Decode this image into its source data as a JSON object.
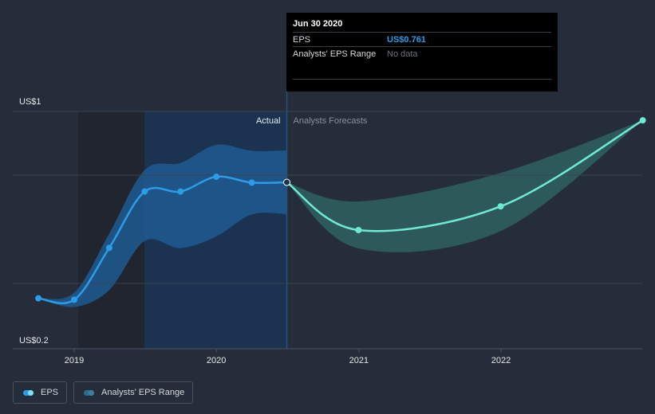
{
  "tooltip": {
    "title": "Jun 30 2020",
    "eps_label": "EPS",
    "eps_value": "US$0.761",
    "range_label": "Analysts' EPS Range",
    "range_value": "No data"
  },
  "legend": {
    "eps_label": "EPS",
    "range_label": "Analysts' EPS Range"
  },
  "colors": {
    "background": "#262d3a",
    "eps_actual": "#2d9ce8",
    "eps_forecast": "#6fe8d4",
    "range_actual": "#1f5a91",
    "range_forecast": "#2f5e5f"
  },
  "chart_data": {
    "type": "line",
    "y_axis": {
      "min": 0.2,
      "max": 1.0,
      "labels": [
        "US$1",
        "US$0.2"
      ]
    },
    "x_axis": {
      "ticks": [
        "2019",
        "2020",
        "2021",
        "2022"
      ]
    },
    "regions": {
      "actual_label": "Actual",
      "forecast_label": "Analysts Forecasts"
    },
    "series": [
      {
        "name": "EPS",
        "kind": "actual",
        "points": [
          {
            "x": "2018-10-01",
            "y": 0.37
          },
          {
            "x": "2019-01-01",
            "y": 0.365
          },
          {
            "x": "2019-04-01",
            "y": 0.54
          },
          {
            "x": "2019-07-01",
            "y": 0.73
          },
          {
            "x": "2019-10-01",
            "y": 0.73
          },
          {
            "x": "2020-01-01",
            "y": 0.78
          },
          {
            "x": "2020-04-01",
            "y": 0.76
          },
          {
            "x": "2020-06-30",
            "y": 0.761
          }
        ]
      },
      {
        "name": "EPS",
        "kind": "forecast",
        "points": [
          {
            "x": "2020-06-30",
            "y": 0.761
          },
          {
            "x": "2020-12-31",
            "y": 0.6
          },
          {
            "x": "2021-12-31",
            "y": 0.68
          },
          {
            "x": "2022-12-31",
            "y": 0.97
          }
        ]
      }
    ]
  }
}
